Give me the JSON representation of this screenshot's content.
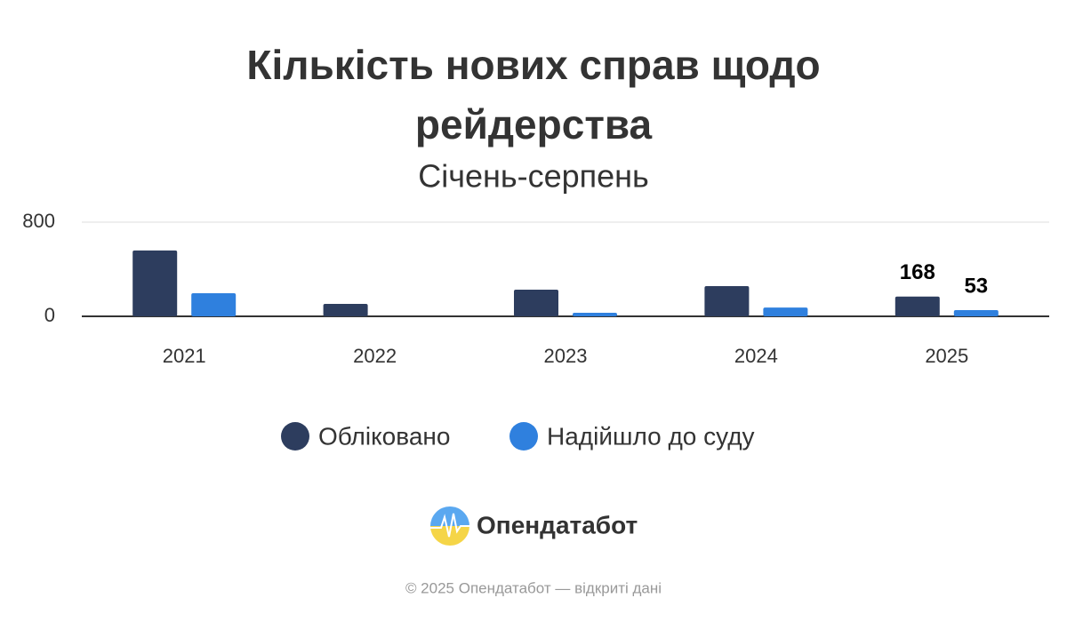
{
  "chart_data": {
    "type": "bar",
    "title": "Кількість нових справ щодо рейдерства",
    "subtitle": "Січень-серпень",
    "categories": [
      "2021",
      "2022",
      "2023",
      "2024",
      "2025"
    ],
    "series": [
      {
        "name": "Обліковано",
        "color": "#2d3d5e",
        "values": [
          559,
          106,
          226,
          257,
          168
        ],
        "value_labels": [
          null,
          null,
          null,
          null,
          "168"
        ]
      },
      {
        "name": "Надійшло до суду",
        "color": "#2f80de",
        "values": [
          196,
          0,
          30,
          75,
          53
        ],
        "value_labels": [
          null,
          null,
          null,
          null,
          "53"
        ]
      }
    ],
    "ylim": [
      0,
      800
    ],
    "yticks": [
      0,
      800
    ],
    "grid": true,
    "legend": "bottom",
    "brand": "Опендатабот",
    "footer": "© 2025 Опендатабот — відкриті дані"
  }
}
